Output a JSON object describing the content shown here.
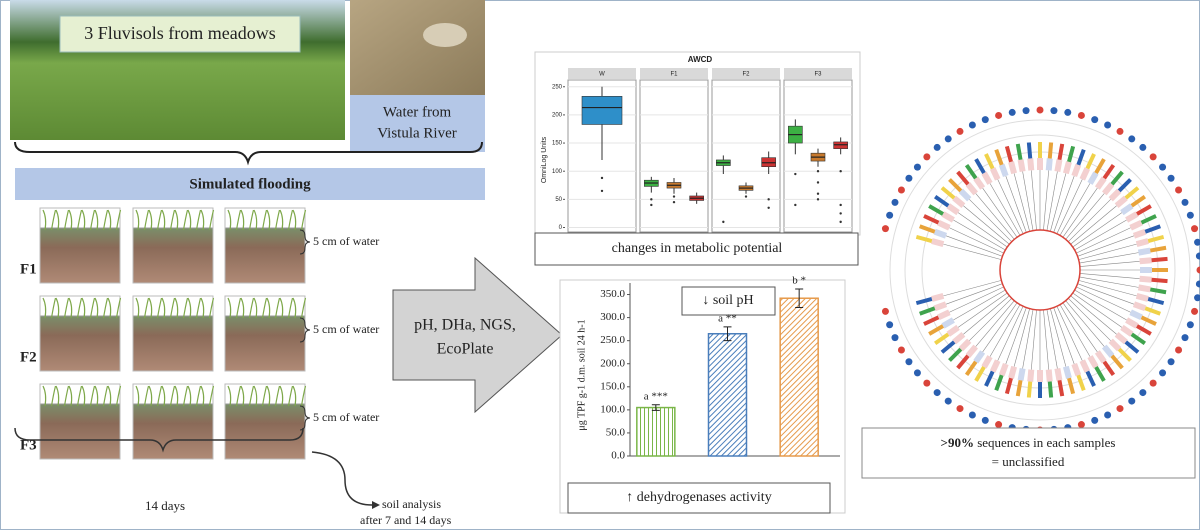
{
  "photo": {
    "label": "3 Fluvisols  from meadows",
    "water_label": [
      "Water from",
      "Vistula River"
    ]
  },
  "flooding": "Simulated flooding",
  "treatments": [
    {
      "name": "F1",
      "water": "5 cm of water"
    },
    {
      "name": "F2",
      "water": "5 cm of water"
    },
    {
      "name": "F3",
      "water": "5 cm of water"
    }
  ],
  "duration": "14 days",
  "soil_analysis": [
    "soil analysis",
    "after 7 and 14 days"
  ],
  "arrow_label": [
    "pH, DHa, NGS,",
    "EcoPlate"
  ],
  "chart_data": [
    {
      "type": "box",
      "title": "AWCD",
      "y_label": "OmniLog Units",
      "ylim": [
        -8,
        262
      ],
      "yticks": [
        0,
        50,
        100,
        150,
        200,
        250
      ],
      "panels": [
        {
          "name": "W",
          "boxes": [
            {
              "color": "#2e8fc9",
              "min": 120,
              "q1": 183,
              "median": 213,
              "q3": 233,
              "max": 250,
              "outliers": [
                88,
                65
              ]
            }
          ]
        },
        {
          "name": "F1",
          "boxes": [
            {
              "color": "#3cb043",
              "min": 62,
              "q1": 73,
              "median": 79,
              "q3": 84,
              "max": 90,
              "outliers": [
                50,
                40
              ]
            },
            {
              "color": "#c7792d",
              "min": 60,
              "q1": 70,
              "median": 75,
              "q3": 80,
              "max": 88,
              "outliers": [
                55,
                45
              ]
            },
            {
              "color": "#cc3333",
              "min": 42,
              "q1": 48,
              "median": 52,
              "q3": 56,
              "max": 62,
              "outliers": []
            }
          ]
        },
        {
          "name": "F2",
          "boxes": [
            {
              "color": "#3cb043",
              "min": 95,
              "q1": 110,
              "median": 115,
              "q3": 120,
              "max": 128,
              "outliers": [
                10
              ]
            },
            {
              "color": "#c7792d",
              "min": 60,
              "q1": 66,
              "median": 70,
              "q3": 74,
              "max": 80,
              "outliers": [
                55
              ]
            },
            {
              "color": "#cc3333",
              "min": 95,
              "q1": 108,
              "median": 115,
              "q3": 124,
              "max": 135,
              "outliers": [
                50,
                35
              ]
            }
          ]
        },
        {
          "name": "F3",
          "boxes": [
            {
              "color": "#3cb043",
              "min": 130,
              "q1": 150,
              "median": 165,
              "q3": 180,
              "max": 192,
              "outliers": [
                95,
                40
              ]
            },
            {
              "color": "#c7792d",
              "min": 108,
              "q1": 118,
              "median": 125,
              "q3": 132,
              "max": 140,
              "outliers": [
                100,
                80,
                60,
                50
              ]
            },
            {
              "color": "#cc3333",
              "min": 130,
              "q1": 140,
              "median": 147,
              "q3": 152,
              "max": 160,
              "outliers": [
                100,
                40,
                25,
                10
              ]
            }
          ]
        }
      ],
      "caption": "changes in metabolic potential"
    },
    {
      "type": "bar",
      "title": "↓ soil pH",
      "y_label": "μg TPF g-1 d.m. soil 24 h-1",
      "ylim": [
        0,
        375
      ],
      "yticks": [
        {
          "value": 0,
          "label": "0.0"
        },
        {
          "value": 50,
          "label": "50.0"
        },
        {
          "value": 100,
          "label": "100.0"
        },
        {
          "value": 150,
          "label": "150.0"
        },
        {
          "value": 200,
          "label": "200.0"
        },
        {
          "value": 250,
          "label": "250.0"
        },
        {
          "value": 300,
          "label": "300.0"
        },
        {
          "value": 350,
          "label": "350.0"
        }
      ],
      "values": [
        105,
        265,
        342
      ],
      "errors": [
        6,
        15,
        20
      ],
      "colors": [
        "#7ab648",
        "#4a7ebb",
        "#e69a4b"
      ],
      "annotations": [
        "a ***",
        "a **",
        "b *"
      ],
      "caption": "↑ dehydrogenases activity"
    }
  ],
  "tree_note": {
    "emphasis": ">90%",
    "text": " sequences in each samples",
    "line2": "= unclassified"
  }
}
